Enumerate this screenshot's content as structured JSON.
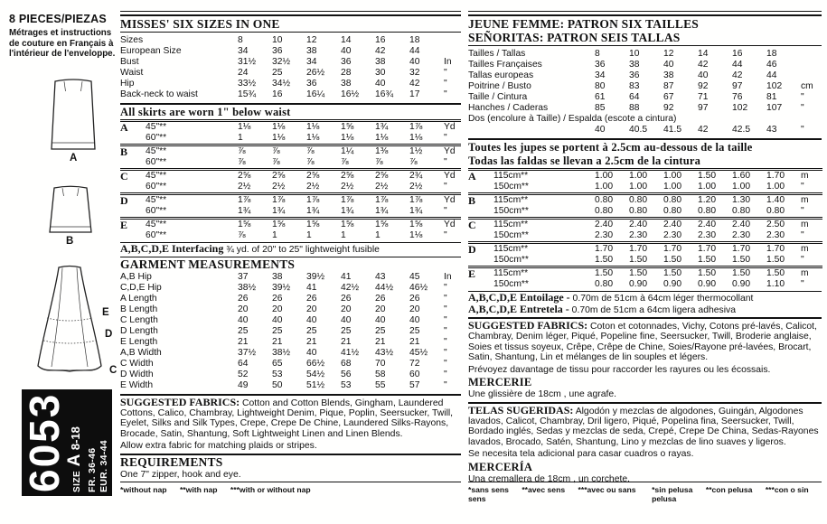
{
  "left": {
    "pieces_title_num": "8",
    "pieces_title_text": " PIECES/PIEZAS",
    "pieces_note": "Métrages et instructions de couture en Français à l'intérieur de l'enveloppe.",
    "view_labels": {
      "a": "A",
      "b": "B",
      "c": "C",
      "d": "D",
      "e": "E"
    },
    "banner": {
      "number": "6053",
      "size_label": "SIZE",
      "size_letter": "A",
      "size_range": "8-18",
      "fr": "FR. 36-46",
      "eur": "EUR. 34-44"
    }
  },
  "english": {
    "title": "MISSES' SIX SIZES IN ONE",
    "size_rows": [
      {
        "label": "Sizes",
        "values": [
          "8",
          "10",
          "12",
          "14",
          "16",
          "18"
        ],
        "unit": ""
      },
      {
        "label": "European Size",
        "values": [
          "34",
          "36",
          "38",
          "40",
          "42",
          "44"
        ],
        "unit": ""
      },
      {
        "label": "Bust",
        "values": [
          "31½",
          "32½",
          "34",
          "36",
          "38",
          "40"
        ],
        "unit": "In"
      },
      {
        "label": "Waist",
        "values": [
          "24",
          "25",
          "26½",
          "28",
          "30",
          "32"
        ],
        "unit": "\""
      },
      {
        "label": "Hip",
        "values": [
          "33½",
          "34½",
          "36",
          "38",
          "40",
          "42"
        ],
        "unit": "\""
      },
      {
        "label": "Back-neck to waist",
        "values": [
          "15¾",
          "16",
          "16¼",
          "16½",
          "16¾",
          "17"
        ],
        "unit": "\""
      }
    ],
    "skirts_note": "All skirts are worn 1\" below waist",
    "yardage": [
      {
        "view": "A",
        "rows": [
          {
            "width": "45\"**",
            "values": [
              "1⅛",
              "1⅛",
              "1⅛",
              "1⅝",
              "1¾",
              "1⅞"
            ],
            "unit": "Yd"
          },
          {
            "width": "60\"**",
            "values": [
              "1",
              "1⅛",
              "1⅛",
              "1⅛",
              "1⅛",
              "1⅛"
            ],
            "unit": "\""
          }
        ]
      },
      {
        "view": "B",
        "rows": [
          {
            "width": "45\"**",
            "values": [
              "⅞",
              "⅞",
              "⅞",
              "1¼",
              "1⅜",
              "1½"
            ],
            "unit": "Yd"
          },
          {
            "width": "60\"**",
            "values": [
              "⅞",
              "⅞",
              "⅞",
              "⅞",
              "⅞",
              "⅞"
            ],
            "unit": "\""
          }
        ]
      },
      {
        "view": "C",
        "rows": [
          {
            "width": "45\"**",
            "values": [
              "2⅝",
              "2⅝",
              "2⅝",
              "2⅝",
              "2⅝",
              "2¾"
            ],
            "unit": "Yd"
          },
          {
            "width": "60\"**",
            "values": [
              "2½",
              "2½",
              "2½",
              "2½",
              "2½",
              "2½"
            ],
            "unit": "\""
          }
        ]
      },
      {
        "view": "D",
        "rows": [
          {
            "width": "45\"**",
            "values": [
              "1⅞",
              "1⅞",
              "1⅞",
              "1⅞",
              "1⅞",
              "1⅞"
            ],
            "unit": "Yd"
          },
          {
            "width": "60\"**",
            "values": [
              "1¾",
              "1¾",
              "1¾",
              "1¾",
              "1¾",
              "1¾"
            ],
            "unit": "\""
          }
        ]
      },
      {
        "view": "E",
        "rows": [
          {
            "width": "45\"**",
            "values": [
              "1⅝",
              "1⅝",
              "1⅝",
              "1⅝",
              "1⅝",
              "1⅝"
            ],
            "unit": "Yd"
          },
          {
            "width": "60\"**",
            "values": [
              "⅞",
              "1",
              "1",
              "1",
              "1",
              "1⅛"
            ],
            "unit": "\""
          }
        ]
      }
    ],
    "interfacing_lead": "A,B,C,D,E Interfacing",
    "interfacing_text": " ¾ yd. of 20\" to 25\" lightweight fusible",
    "garment_title": "GARMENT MEASUREMENTS",
    "garment_rows": [
      {
        "label": "A,B Hip",
        "values": [
          "37",
          "38",
          "39½",
          "41",
          "43",
          "45"
        ],
        "unit": "In"
      },
      {
        "label": "C,D,E Hip",
        "values": [
          "38½",
          "39½",
          "41",
          "42½",
          "44½",
          "46½"
        ],
        "unit": "\""
      },
      {
        "label": "A Length",
        "values": [
          "26",
          "26",
          "26",
          "26",
          "26",
          "26"
        ],
        "unit": "\""
      },
      {
        "label": "B Length",
        "values": [
          "20",
          "20",
          "20",
          "20",
          "20",
          "20"
        ],
        "unit": "\""
      },
      {
        "label": "C Length",
        "values": [
          "40",
          "40",
          "40",
          "40",
          "40",
          "40"
        ],
        "unit": "\""
      },
      {
        "label": "D Length",
        "values": [
          "25",
          "25",
          "25",
          "25",
          "25",
          "25"
        ],
        "unit": "\""
      },
      {
        "label": "E Length",
        "values": [
          "21",
          "21",
          "21",
          "21",
          "21",
          "21"
        ],
        "unit": "\""
      },
      {
        "label": "A,B Width",
        "values": [
          "37½",
          "38½",
          "40",
          "41½",
          "43½",
          "45½"
        ],
        "unit": "\""
      },
      {
        "label": "C Width",
        "values": [
          "64",
          "65",
          "66½",
          "68",
          "70",
          "72"
        ],
        "unit": "\""
      },
      {
        "label": "D Width",
        "values": [
          "52",
          "53",
          "54½",
          "56",
          "58",
          "60"
        ],
        "unit": "\""
      },
      {
        "label": "E Width",
        "values": [
          "49",
          "50",
          "51½",
          "53",
          "55",
          "57"
        ],
        "unit": "\""
      }
    ],
    "fabrics_lead": "SUGGESTED FABRICS:",
    "fabrics_text": " Cotton and Cotton Blends, Gingham, Laundered Cottons, Calico, Chambray, Lightweight Denim, Pique, Poplin, Seersucker, Twill, Eyelet, Silks and Silk Types, Crepe, Crepe De Chine, Laundered Silks-Rayons, Brocade, Satin, Shantung, Soft Lightweight Linen and Linen Blends.",
    "fabrics_note": "Allow extra fabric for matching plaids or stripes.",
    "requirements_title": "REQUIREMENTS",
    "requirements_text": "One 7\" zipper, hook and eye.",
    "footnotes": [
      "*without nap",
      "**with nap",
      "***with or without nap"
    ]
  },
  "intl": {
    "title_fr": "JEUNE FEMME: PATRON SIX TAILLES",
    "title_es": "SEÑORITAS: PATRON SEIS TALLAS",
    "size_rows": [
      {
        "label": "Tailles / Tallas",
        "values": [
          "8",
          "10",
          "12",
          "14",
          "16",
          "18"
        ],
        "unit": ""
      },
      {
        "label": "Tailles Françaises",
        "values": [
          "36",
          "38",
          "40",
          "42",
          "44",
          "46"
        ],
        "unit": ""
      },
      {
        "label": "Tallas europeas",
        "values": [
          "34",
          "36",
          "38",
          "40",
          "42",
          "44"
        ],
        "unit": ""
      },
      {
        "label": "Poitrine / Busto",
        "values": [
          "80",
          "83",
          "87",
          "92",
          "97",
          "102"
        ],
        "unit": "cm"
      },
      {
        "label": "Taille / Cintura",
        "values": [
          "61",
          "64",
          "67",
          "71",
          "76",
          "81"
        ],
        "unit": "\""
      },
      {
        "label": "Hanches / Caderas",
        "values": [
          "85",
          "88",
          "92",
          "97",
          "102",
          "107"
        ],
        "unit": "\""
      },
      {
        "label": "Dos (encolure à Taille) / Espalda (escote a cintura)",
        "values": [],
        "unit": "",
        "full": true
      },
      {
        "label": "",
        "values": [
          "40",
          "40.5",
          "41.5",
          "42",
          "42.5",
          "43"
        ],
        "unit": "\""
      }
    ],
    "skirts_note_fr": "Toutes les jupes se portent à 2.5cm au-dessous de la taille",
    "skirts_note_es": "Todas las faldas se llevan a 2.5cm de la cintura",
    "yardage": [
      {
        "view": "A",
        "rows": [
          {
            "width": "115cm**",
            "values": [
              "1.00",
              "1.00",
              "1.00",
              "1.50",
              "1.60",
              "1.70"
            ],
            "unit": "m"
          },
          {
            "width": "150cm**",
            "values": [
              "1.00",
              "1.00",
              "1.00",
              "1.00",
              "1.00",
              "1.00"
            ],
            "unit": "\""
          }
        ]
      },
      {
        "view": "B",
        "rows": [
          {
            "width": "115cm**",
            "values": [
              "0.80",
              "0.80",
              "0.80",
              "1.20",
              "1.30",
              "1.40"
            ],
            "unit": "m"
          },
          {
            "width": "150cm**",
            "values": [
              "0.80",
              "0.80",
              "0.80",
              "0.80",
              "0.80",
              "0.80"
            ],
            "unit": "\""
          }
        ]
      },
      {
        "view": "C",
        "rows": [
          {
            "width": "115cm**",
            "values": [
              "2.40",
              "2.40",
              "2.40",
              "2.40",
              "2.40",
              "2.50"
            ],
            "unit": "m"
          },
          {
            "width": "150cm**",
            "values": [
              "2.30",
              "2.30",
              "2.30",
              "2.30",
              "2.30",
              "2.30"
            ],
            "unit": "\""
          }
        ]
      },
      {
        "view": "D",
        "rows": [
          {
            "width": "115cm**",
            "values": [
              "1.70",
              "1.70",
              "1.70",
              "1.70",
              "1.70",
              "1.70"
            ],
            "unit": "m"
          },
          {
            "width": "150cm**",
            "values": [
              "1.50",
              "1.50",
              "1.50",
              "1.50",
              "1.50",
              "1.50"
            ],
            "unit": "\""
          }
        ]
      },
      {
        "view": "E",
        "rows": [
          {
            "width": "115cm**",
            "values": [
              "1.50",
              "1.50",
              "1.50",
              "1.50",
              "1.50",
              "1.50"
            ],
            "unit": "m"
          },
          {
            "width": "150cm**",
            "values": [
              "0.80",
              "0.90",
              "0.90",
              "0.90",
              "0.90",
              "1.10"
            ],
            "unit": "\""
          }
        ]
      }
    ],
    "entoilage_lead": "A,B,C,D,E Entoilage -",
    "entoilage_text": " 0.70m de 51cm à 64cm léger thermocollant",
    "entretela_lead": "A,B,C,D,E Entretela -",
    "entretela_text": " 0.70m de 51cm a 64cm ligera adhesiva",
    "fabrics_fr_lead": "SUGGESTED FABRICS:",
    "fabrics_fr_text": " Coton et cotonnades, Vichy, Cotons pré-lavés, Calicot, Chambray, Denim léger, Piqué, Popeline fine, Seersucker, Twill, Broderie anglaise, Soies et tissus soyeux, Crêpe, Crêpe de Chine, Soies/Rayone pré-lavées, Brocart, Satin, Shantung, Lin et mélanges de lin souples et légers.",
    "fabrics_fr_note": "Prévoyez davantage de tissu pour raccorder les rayures ou les écossais.",
    "mercerie_title": "MERCERIE",
    "mercerie_text": "Une glissière de 18cm , une agrafe.",
    "telas_lead": "TELAS SUGERIDAS:",
    "telas_text": " Algodón y mezclas de algodones, Guingán, Algodones lavados, Calicot, Chambray, Dril ligero, Piqué, Popelina fina, Seersucker, Twill, Bordado inglés, Sedas y mezclas de seda, Crepé, Crepe De China, Sedas-Rayones lavados, Brocado, Satén, Shantung, Lino y mezclas de lino suaves y ligeros.",
    "telas_note": "Se necesita tela adicional para casar cuadros o rayas.",
    "merceria_title": "MERCERÍA",
    "merceria_text": "Una cremallera de 18cm , un corchete.",
    "footnotes_fr": [
      "*sans sens",
      "**avec sens",
      "***avec ou sans sens"
    ],
    "footnotes_es": [
      "*sin pelusa",
      "**con pelusa",
      "***con o sin pelusa"
    ]
  }
}
